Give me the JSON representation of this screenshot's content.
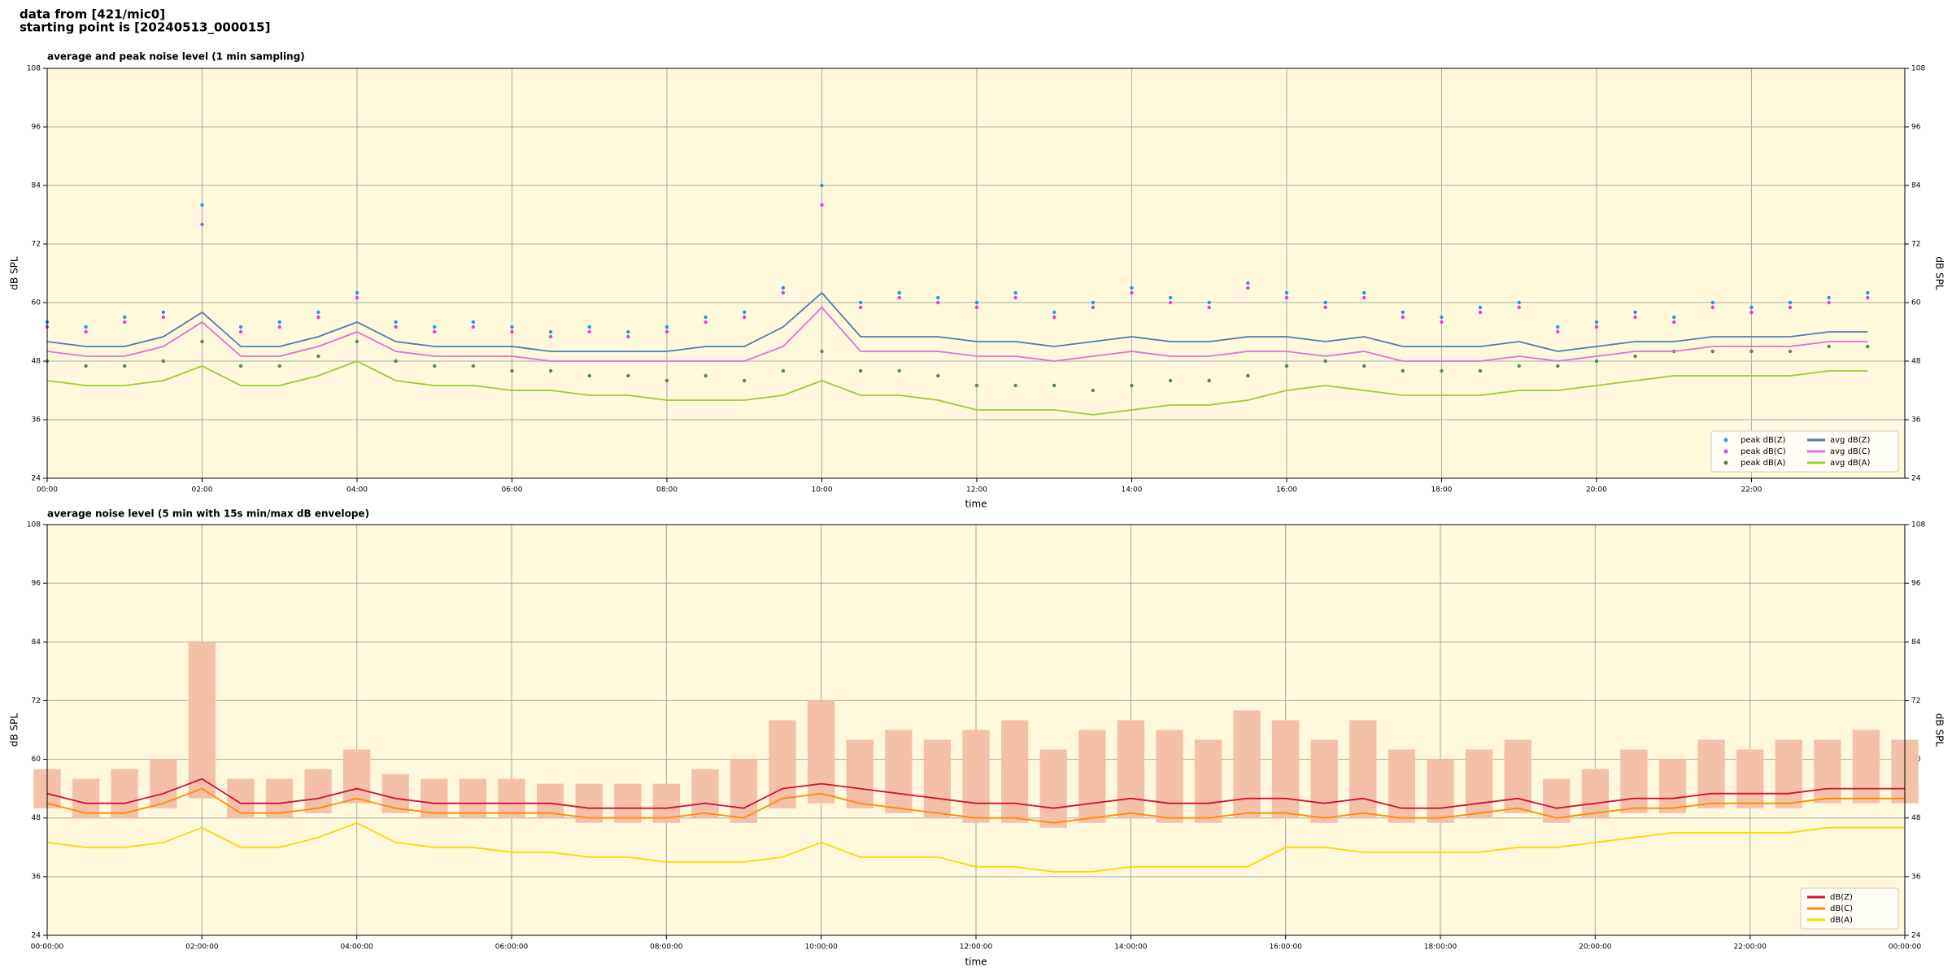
{
  "header": {
    "source": "data from [421/mic0]",
    "start": "starting point is [20240513_000015]"
  },
  "chart_data": [
    {
      "type": "line",
      "title": "average and peak noise level (1 min sampling)",
      "xlabel": "time",
      "ylabel": "dB SPL",
      "background": "#fff8dc",
      "grid": true,
      "legend": "lower right",
      "legend_columns": 2,
      "x": [
        0,
        0.5,
        1,
        1.5,
        2,
        2.5,
        3,
        3.5,
        4,
        4.5,
        5,
        5.5,
        6,
        6.5,
        7,
        7.5,
        8,
        8.5,
        9,
        9.5,
        10,
        10.5,
        11,
        11.5,
        12,
        12.5,
        13,
        13.5,
        14,
        14.5,
        15,
        15.5,
        16,
        16.5,
        17,
        17.5,
        18,
        18.5,
        19,
        19.5,
        20,
        20.5,
        21,
        21.5,
        22,
        22.5,
        23,
        23.5
      ],
      "xlim": [
        0,
        23.98
      ],
      "xticks": [
        {
          "value": 0,
          "label": "00:00"
        },
        {
          "value": 2,
          "label": "02:00"
        },
        {
          "value": 4,
          "label": "04:00"
        },
        {
          "value": 6,
          "label": "06:00"
        },
        {
          "value": 8,
          "label": "08:00"
        },
        {
          "value": 10,
          "label": "10:00"
        },
        {
          "value": 12,
          "label": "12:00"
        },
        {
          "value": 14,
          "label": "14:00"
        },
        {
          "value": 16,
          "label": "16:00"
        },
        {
          "value": 18,
          "label": "18:00"
        },
        {
          "value": 20,
          "label": "20:00"
        },
        {
          "value": 22,
          "label": "22:00"
        }
      ],
      "ylim": [
        24,
        108
      ],
      "yticks": [
        24,
        36,
        48,
        60,
        72,
        84,
        96,
        108
      ],
      "series": [
        {
          "name": "peak dB(Z)",
          "kind": "scatter",
          "color": "#1f9be0",
          "values": [
            56,
            55,
            57,
            58,
            80,
            55,
            56,
            58,
            62,
            56,
            55,
            56,
            55,
            54,
            55,
            54,
            55,
            57,
            58,
            63,
            84,
            60,
            62,
            61,
            60,
            62,
            58,
            60,
            63,
            61,
            60,
            64,
            62,
            60,
            62,
            58,
            57,
            59,
            60,
            55,
            56,
            58,
            57,
            60,
            59,
            60,
            61,
            62
          ]
        },
        {
          "name": "peak dB(C)",
          "kind": "scatter",
          "color": "#e040e0",
          "values": [
            55,
            54,
            56,
            57,
            76,
            54,
            55,
            57,
            61,
            55,
            54,
            55,
            54,
            53,
            54,
            53,
            54,
            56,
            57,
            62,
            80,
            59,
            61,
            60,
            59,
            61,
            57,
            59,
            62,
            60,
            59,
            63,
            61,
            59,
            61,
            57,
            56,
            58,
            59,
            54,
            55,
            57,
            56,
            59,
            58,
            59,
            60,
            61
          ]
        },
        {
          "name": "peak dB(A)",
          "kind": "scatter",
          "color": "#4f8a4f",
          "values": [
            48,
            47,
            47,
            48,
            52,
            47,
            47,
            49,
            52,
            48,
            47,
            47,
            46,
            46,
            45,
            45,
            44,
            45,
            44,
            46,
            50,
            46,
            46,
            45,
            43,
            43,
            43,
            42,
            43,
            44,
            44,
            45,
            47,
            48,
            47,
            46,
            46,
            46,
            47,
            47,
            48,
            49,
            50,
            50,
            50,
            50,
            51,
            51
          ]
        },
        {
          "name": "avg dB(Z)",
          "kind": "line",
          "color": "#4a7fb0",
          "values": [
            52,
            51,
            51,
            53,
            58,
            51,
            51,
            53,
            56,
            52,
            51,
            51,
            51,
            50,
            50,
            50,
            50,
            51,
            51,
            55,
            62,
            53,
            53,
            53,
            52,
            52,
            51,
            52,
            53,
            52,
            52,
            53,
            53,
            52,
            53,
            51,
            51,
            51,
            52,
            50,
            51,
            52,
            52,
            53,
            53,
            53,
            54,
            54
          ]
        },
        {
          "name": "avg dB(C)",
          "kind": "line",
          "color": "#e070d0",
          "values": [
            50,
            49,
            49,
            51,
            56,
            49,
            49,
            51,
            54,
            50,
            49,
            49,
            49,
            48,
            48,
            48,
            48,
            48,
            48,
            51,
            59,
            50,
            50,
            50,
            49,
            49,
            48,
            49,
            50,
            49,
            49,
            50,
            50,
            49,
            50,
            48,
            48,
            48,
            49,
            48,
            49,
            50,
            50,
            51,
            51,
            51,
            52,
            52
          ]
        },
        {
          "name": "avg dB(A)",
          "kind": "line",
          "color": "#9acd32",
          "values": [
            44,
            43,
            43,
            44,
            47,
            43,
            43,
            45,
            48,
            44,
            43,
            43,
            42,
            42,
            41,
            41,
            40,
            40,
            40,
            41,
            44,
            41,
            41,
            40,
            38,
            38,
            38,
            37,
            38,
            39,
            39,
            40,
            42,
            43,
            42,
            41,
            41,
            41,
            42,
            42,
            43,
            44,
            45,
            45,
            45,
            45,
            46,
            46
          ]
        }
      ]
    },
    {
      "type": "line",
      "title": "average noise level (5 min with 15s min/max dB envelope)",
      "xlabel": "time",
      "ylabel": "dB SPL",
      "background": "#fff8dc",
      "grid": true,
      "legend": "lower right",
      "legend_columns": 1,
      "x": [
        0,
        0.5,
        1,
        1.5,
        2,
        2.5,
        3,
        3.5,
        4,
        4.5,
        5,
        5.5,
        6,
        6.5,
        7,
        7.5,
        8,
        8.5,
        9,
        9.5,
        10,
        10.5,
        11,
        11.5,
        12,
        12.5,
        13,
        13.5,
        14,
        14.5,
        15,
        15.5,
        16,
        16.5,
        17,
        17.5,
        18,
        18.5,
        19,
        19.5,
        20,
        20.5,
        21,
        21.5,
        22,
        22.5,
        23,
        23.5,
        24
      ],
      "xlim": [
        0,
        24
      ],
      "xticks": [
        {
          "value": 0,
          "label": "00:00:00"
        },
        {
          "value": 2,
          "label": "02:00:00"
        },
        {
          "value": 4,
          "label": "04:00:00"
        },
        {
          "value": 6,
          "label": "06:00:00"
        },
        {
          "value": 8,
          "label": "08:00:00"
        },
        {
          "value": 10,
          "label": "10:00:00"
        },
        {
          "value": 12,
          "label": "12:00:00"
        },
        {
          "value": 14,
          "label": "14:00:00"
        },
        {
          "value": 16,
          "label": "16:00:00"
        },
        {
          "value": 18,
          "label": "18:00:00"
        },
        {
          "value": 20,
          "label": "20:00:00"
        },
        {
          "value": 22,
          "label": "22:00:00"
        },
        {
          "value": 24,
          "label": "00:00:00"
        }
      ],
      "ylim": [
        24,
        108
      ],
      "yticks": [
        24,
        36,
        48,
        60,
        72,
        84,
        96,
        108
      ],
      "envelope": {
        "color": "#f5c0a8",
        "max": [
          58,
          56,
          58,
          60,
          84,
          56,
          56,
          58,
          62,
          57,
          56,
          56,
          56,
          55,
          55,
          55,
          55,
          58,
          60,
          68,
          72,
          64,
          66,
          64,
          66,
          68,
          62,
          66,
          68,
          66,
          64,
          70,
          68,
          64,
          68,
          62,
          60,
          62,
          64,
          56,
          58,
          62,
          60,
          64,
          62,
          64,
          64,
          66,
          64
        ],
        "min": [
          50,
          48,
          48,
          50,
          52,
          48,
          48,
          49,
          51,
          49,
          48,
          48,
          48,
          48,
          47,
          47,
          47,
          48,
          47,
          50,
          51,
          50,
          49,
          48,
          47,
          47,
          46,
          47,
          48,
          47,
          47,
          48,
          48,
          47,
          48,
          47,
          47,
          48,
          49,
          47,
          48,
          49,
          49,
          50,
          50,
          50,
          51,
          51,
          51
        ]
      },
      "series": [
        {
          "name": "dB(Z)",
          "kind": "line",
          "color": "#d0103a",
          "values": [
            53,
            51,
            51,
            53,
            56,
            51,
            51,
            52,
            54,
            52,
            51,
            51,
            51,
            51,
            50,
            50,
            50,
            51,
            50,
            54,
            55,
            54,
            53,
            52,
            51,
            51,
            50,
            51,
            52,
            51,
            51,
            52,
            52,
            51,
            52,
            50,
            50,
            51,
            52,
            50,
            51,
            52,
            52,
            53,
            53,
            53,
            54,
            54,
            54
          ]
        },
        {
          "name": "dB(C)",
          "kind": "line",
          "color": "#ff8c00",
          "values": [
            51,
            49,
            49,
            51,
            54,
            49,
            49,
            50,
            52,
            50,
            49,
            49,
            49,
            49,
            48,
            48,
            48,
            49,
            48,
            52,
            53,
            51,
            50,
            49,
            48,
            48,
            47,
            48,
            49,
            48,
            48,
            49,
            49,
            48,
            49,
            48,
            48,
            49,
            50,
            48,
            49,
            50,
            50,
            51,
            51,
            51,
            52,
            52,
            52
          ]
        },
        {
          "name": "dB(A)",
          "kind": "line",
          "color": "#ffd700",
          "values": [
            43,
            42,
            42,
            43,
            46,
            42,
            42,
            44,
            47,
            43,
            42,
            42,
            41,
            41,
            40,
            40,
            39,
            39,
            39,
            40,
            43,
            40,
            40,
            40,
            38,
            38,
            37,
            37,
            38,
            38,
            38,
            38,
            42,
            42,
            41,
            41,
            41,
            41,
            42,
            42,
            43,
            44,
            45,
            45,
            45,
            45,
            46,
            46,
            46
          ]
        }
      ]
    }
  ]
}
